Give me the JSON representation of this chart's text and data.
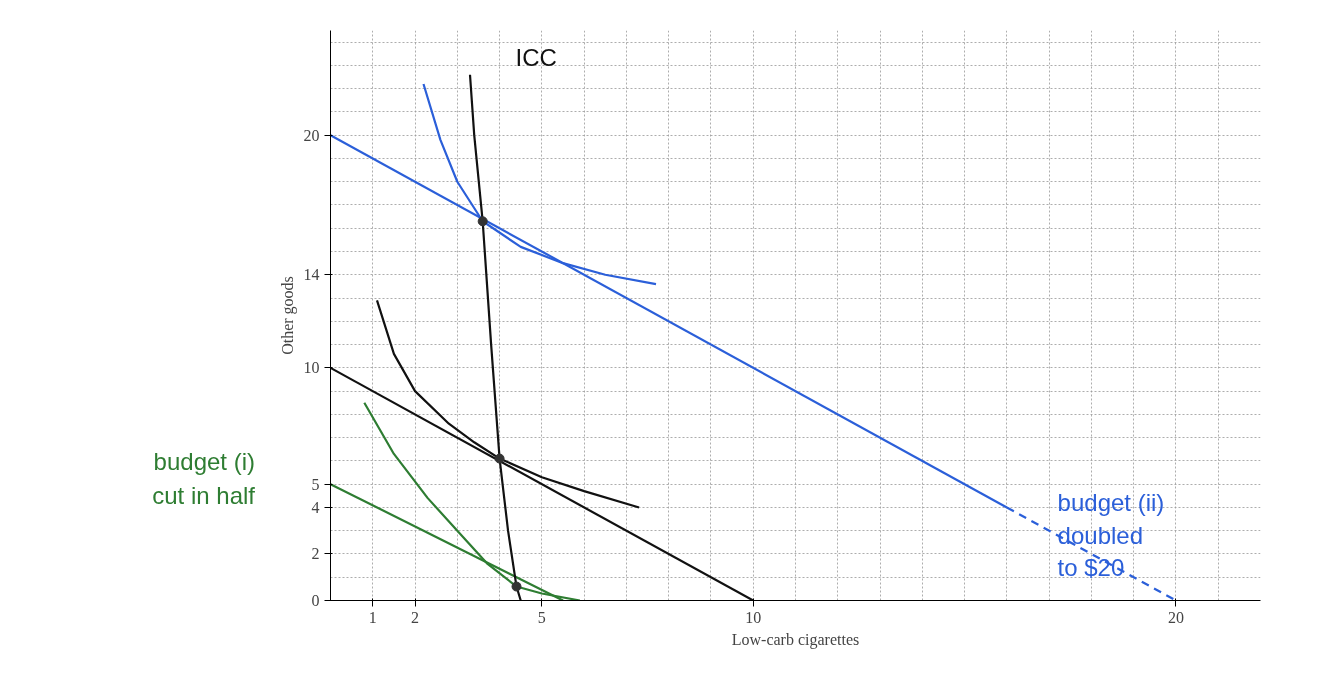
{
  "chart_data": {
    "type": "line",
    "xlabel": "Low-carb cigarettes",
    "ylabel": "Other goods",
    "xlim": [
      0,
      22
    ],
    "ylim": [
      0,
      24.5
    ],
    "xticks": [
      1,
      2,
      5,
      10,
      20
    ],
    "yticks": [
      0,
      2,
      4,
      5,
      10,
      14,
      20
    ],
    "grid": true,
    "marker": "none",
    "line_style": "solid",
    "series": [
      {
        "color": "#2b5fd9",
        "x": [
          0,
          16
        ],
        "values": [
          20,
          4
        ]
      },
      {
        "color": "#2b5fd9",
        "x": [
          16,
          20
        ],
        "values": [
          4,
          0
        ],
        "line_style": "dashed"
      },
      {
        "color": "#111111",
        "x": [
          0,
          10
        ],
        "values": [
          10,
          0
        ]
      },
      {
        "color": "#2e7d32",
        "x": [
          0,
          5.5
        ],
        "values": [
          5,
          0
        ]
      },
      {
        "color": "#2b5fd9",
        "x": [
          2.2,
          2.6,
          3.0,
          3.6,
          4.5,
          5.5,
          6.5,
          7.7
        ],
        "values": [
          22.2,
          19.8,
          18.0,
          16.3,
          15.2,
          14.5,
          14.0,
          13.6
        ]
      },
      {
        "color": "#111111",
        "x": [
          1.1,
          1.5,
          2.0,
          2.8,
          3.4,
          4.0,
          5.0,
          6.0,
          7.3
        ],
        "values": [
          12.9,
          10.6,
          9.0,
          7.6,
          6.8,
          6.1,
          5.3,
          4.7,
          4.0
        ]
      },
      {
        "color": "#2e7d32",
        "x": [
          0.8,
          1.5,
          2.3,
          3.0,
          3.7,
          4.4,
          5.0,
          5.9
        ],
        "values": [
          8.5,
          6.3,
          4.4,
          3.0,
          1.6,
          0.6,
          0.3,
          0
        ]
      },
      {
        "color": "#111111",
        "x": [
          3.3,
          3.4,
          3.6,
          3.8,
          4.0,
          4.2,
          4.4,
          4.5
        ],
        "values": [
          22.6,
          20.0,
          16.3,
          11.0,
          6.1,
          3.0,
          0.6,
          0
        ]
      },
      {
        "type": "scatter",
        "marker": "circle",
        "color": "#333333",
        "x": [
          3.6,
          4.0,
          4.4
        ],
        "values": [
          16.3,
          6.1,
          0.6
        ]
      }
    ],
    "annotations": [
      "ICC",
      "budget (i)\ncut in half",
      {
        "text": "budget (ii)\ndoubled\nto $20",
        "x": 17.2,
        "y": 2.8
      }
    ]
  }
}
